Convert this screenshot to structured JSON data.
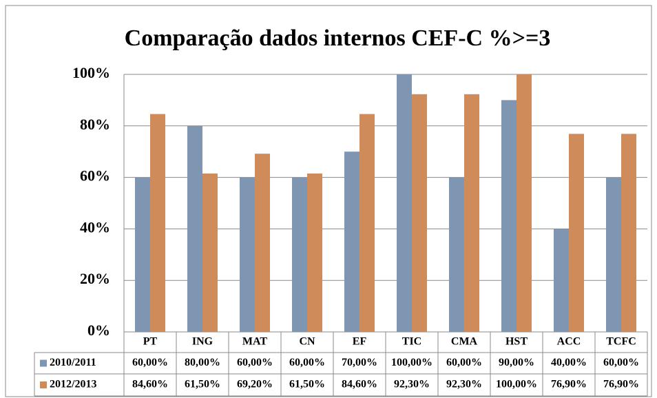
{
  "chart_data": {
    "type": "bar",
    "title": "Comparação dados internos CEF-C %>=3",
    "categories": [
      "PT",
      "ING",
      "MAT",
      "CN",
      "EF",
      "TIC",
      "CMA",
      "HST",
      "ACC",
      "TCFC"
    ],
    "series": [
      {
        "name": "2010/2011",
        "color": "#7f96b2",
        "values": [
          60,
          80,
          60,
          60,
          70,
          100,
          60,
          90,
          40,
          60
        ],
        "value_labels": [
          "60,00%",
          "80,00%",
          "60,00%",
          "60,00%",
          "70,00%",
          "100,00%",
          "60,00%",
          "90,00%",
          "40,00%",
          "60,00%"
        ]
      },
      {
        "name": "2012/2013",
        "color": "#d08b5b",
        "values": [
          84.6,
          61.5,
          69.2,
          61.5,
          84.6,
          92.3,
          92.3,
          100,
          76.9,
          76.9
        ],
        "value_labels": [
          "84,60%",
          "61,50%",
          "69,20%",
          "61,50%",
          "84,60%",
          "92,30%",
          "92,30%",
          "100,00%",
          "76,90%",
          "76,90%"
        ]
      }
    ],
    "ylim": [
      0,
      100
    ],
    "yticks": [
      {
        "value": 0,
        "label": "0%"
      },
      {
        "value": 20,
        "label": "20%"
      },
      {
        "value": 40,
        "label": "40%"
      },
      {
        "value": 60,
        "label": "60%"
      },
      {
        "value": 80,
        "label": "80%"
      },
      {
        "value": 100,
        "label": "100%"
      }
    ],
    "grid": true
  }
}
